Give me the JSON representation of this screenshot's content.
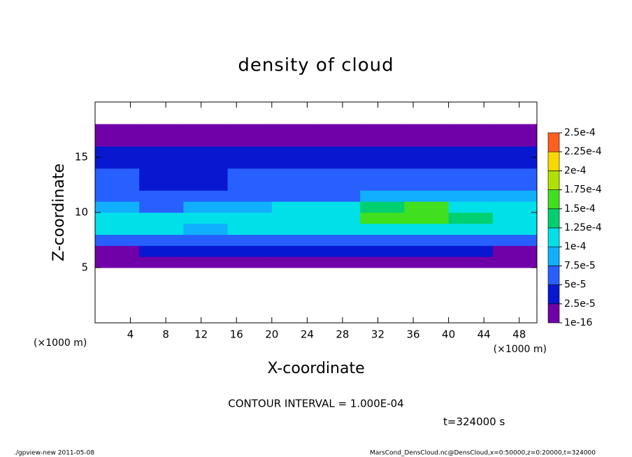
{
  "chart_data": {
    "type": "heatmap",
    "title": "density of cloud",
    "x_label": "X-coordinate",
    "y_label": "Z-coordinate",
    "x_unit": "(×1000 m)",
    "y_unit": "(×1000 m)",
    "annotation": "CONTOUR INTERVAL = 1.000E-04",
    "time_label": "t=324000 s",
    "footer_left": "./gpview-new  2011-05-08",
    "footer_right": "MarsCond_DensCloud.nc@DensCloud,x=0:50000,z=0:20000,t=324000",
    "xlim": [
      0,
      50
    ],
    "ylim": [
      0,
      20
    ],
    "xticks": [
      4,
      8,
      12,
      16,
      20,
      24,
      28,
      32,
      36,
      40,
      44,
      48
    ],
    "yticks": [
      5,
      10,
      15
    ],
    "xbins": [
      0,
      5,
      10,
      15,
      20,
      25,
      30,
      35,
      40,
      45,
      50
    ],
    "ybins": [
      5,
      6,
      7,
      8,
      9,
      10,
      11,
      12,
      13,
      14,
      15,
      16,
      17,
      18
    ],
    "values": [
      [
        1e-06,
        1e-06,
        1e-06,
        1e-06,
        1e-06,
        1e-06,
        1e-06,
        1e-06,
        1e-06,
        1e-06
      ],
      [
        2e-05,
        3e-05,
        3e-05,
        3e-05,
        3e-05,
        3e-05,
        3e-05,
        3e-05,
        3e-05,
        2e-05
      ],
      [
        7e-05,
        7e-05,
        7e-05,
        7e-05,
        7e-05,
        7e-05,
        7e-05,
        7e-05,
        7e-05,
        7e-05
      ],
      [
        0.0001,
        0.0001,
        9e-05,
        0.0001,
        0.0001,
        0.0001,
        0.00011,
        0.00012,
        0.0001,
        0.0001
      ],
      [
        0.00011,
        0.00011,
        0.0001,
        0.00011,
        0.00011,
        0.00012,
        0.00015,
        0.00016,
        0.00013,
        0.00012
      ],
      [
        9e-05,
        7e-05,
        8e-05,
        9e-05,
        0.0001,
        0.00011,
        0.00014,
        0.00015,
        0.00011,
        0.0001
      ],
      [
        7e-05,
        5e-05,
        5e-05,
        6e-05,
        7e-05,
        7e-05,
        8e-05,
        9e-05,
        8e-05,
        8e-05
      ],
      [
        6e-05,
        4e-05,
        4e-05,
        5e-05,
        6e-05,
        6e-05,
        6e-05,
        6e-05,
        6e-05,
        6e-05
      ],
      [
        5e-05,
        4e-05,
        4e-05,
        5e-05,
        5e-05,
        5e-05,
        5e-05,
        5e-05,
        5e-05,
        5e-05
      ],
      [
        4e-05,
        4e-05,
        4e-05,
        4e-05,
        4e-05,
        4e-05,
        4e-05,
        4e-05,
        4e-05,
        4e-05
      ],
      [
        3e-05,
        3e-05,
        3e-05,
        3e-05,
        3e-05,
        3e-05,
        3e-05,
        3e-05,
        3e-05,
        3e-05
      ],
      [
        2e-05,
        2e-05,
        2e-05,
        2e-05,
        2e-05,
        2e-05,
        2e-05,
        2e-05,
        2e-05,
        2e-05
      ],
      [
        1e-06,
        1e-06,
        1e-06,
        1e-06,
        1e-06,
        1e-06,
        1e-06,
        1e-06,
        1e-06,
        1e-06
      ]
    ],
    "levels": [
      1e-16,
      {
        "value": 2.5e-05,
        "label": "2.5e-5"
      },
      {
        "value": 5e-05,
        "label": "5e-5"
      },
      {
        "value": 7.5e-05,
        "label": "7.5e-5"
      },
      {
        "value": 0.0001,
        "label": "1e-4"
      },
      {
        "value": 0.000125,
        "label": "1.25e-4"
      },
      {
        "value": 0.00015,
        "label": "1.5e-4"
      },
      {
        "value": 0.000175,
        "label": "1.75e-4"
      },
      {
        "value": 0.0002,
        "label": "2e-4"
      },
      {
        "value": 0.000225,
        "label": "2.25e-4"
      },
      {
        "value": 0.00025,
        "label": "2.5e-4"
      }
    ],
    "colors": [
      "#7000a8",
      "#0818d0",
      "#2860ff",
      "#10b0ff",
      "#00e0e8",
      "#00d070",
      "#40e020",
      "#b0e000",
      "#f8d800",
      "#ff6020"
    ]
  }
}
